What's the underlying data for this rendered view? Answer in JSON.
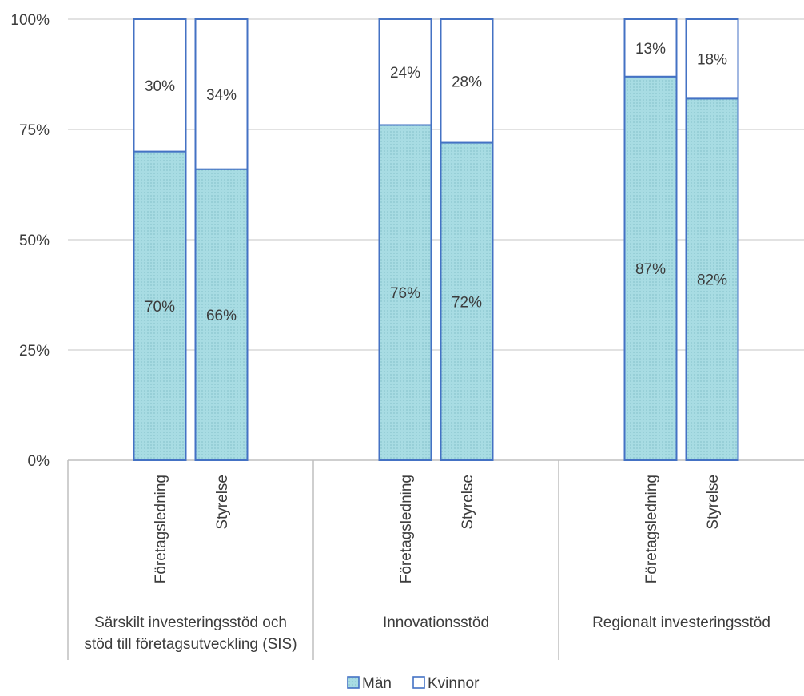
{
  "chart_data": {
    "type": "bar",
    "stacked": true,
    "groups": [
      {
        "label_lines": [
          "Särskilt investeringsstöd och",
          "stöd till företagsutveckling (SIS)"
        ],
        "categories": [
          "Företagsledning",
          "Styrelse"
        ]
      },
      {
        "label_lines": [
          "Innovationsstöd"
        ],
        "categories": [
          "Företagsledning",
          "Styrelse"
        ]
      },
      {
        "label_lines": [
          "Regionalt investeringsstöd"
        ],
        "categories": [
          "Företagsledning",
          "Styrelse"
        ]
      }
    ],
    "series": [
      {
        "name": "Män",
        "values": [
          70,
          66,
          76,
          72,
          87,
          82
        ],
        "labels": [
          "70%",
          "66%",
          "76%",
          "72%",
          "87%",
          "82%"
        ],
        "color": "#a8dce3"
      },
      {
        "name": "Kvinnor",
        "values": [
          30,
          34,
          24,
          28,
          13,
          18
        ],
        "labels": [
          "30%",
          "34%",
          "24%",
          "28%",
          "13%",
          "18%"
        ],
        "color": "#ffffff"
      }
    ],
    "bar_border_color": "#4472c4",
    "ylim": [
      0,
      100
    ],
    "yticks": [
      "0%",
      "25%",
      "50%",
      "75%",
      "100%"
    ],
    "ytick_values": [
      0,
      25,
      50,
      75,
      100
    ],
    "grid": true,
    "legend": {
      "position": "bottom"
    }
  }
}
